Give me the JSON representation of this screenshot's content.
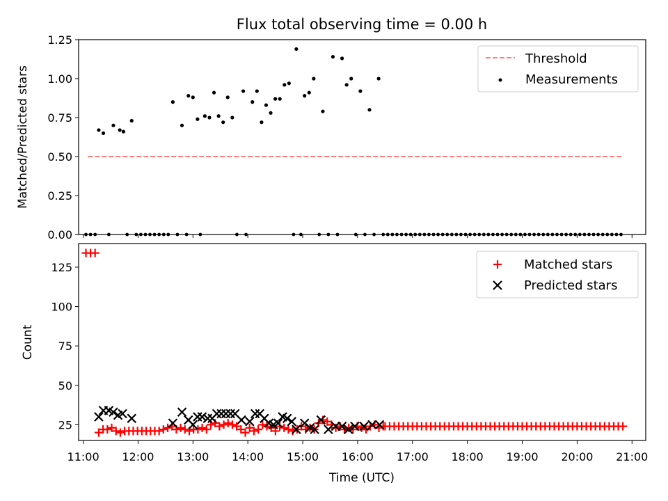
{
  "chart_data": [
    {
      "type": "scatter",
      "title": "Flux total observing time = 0.00 h",
      "xlabel": "",
      "ylabel": "Matched/Predicted stars",
      "xlim": [
        "10:55",
        "21:15"
      ],
      "ylim": [
        0,
        1.25
      ],
      "yticks": [
        0,
        0.25,
        0.5,
        0.75,
        1.0,
        1.25
      ],
      "ytick_labels": [
        "0.00",
        "0.25",
        "0.50",
        "0.75",
        "1.00",
        "1.25"
      ],
      "legend_position": "top-right",
      "series": [
        {
          "name": "Threshold",
          "kind": "line-dashed",
          "color": "#ff7f7f",
          "x": [
            "11:05",
            "20:50"
          ],
          "y": [
            0.5,
            0.5
          ]
        },
        {
          "name": "Measurements",
          "kind": "scatter-dot",
          "color": "#000000",
          "points": [
            [
              "11:17",
              0.67
            ],
            [
              "11:22",
              0.65
            ],
            [
              "11:33",
              0.7
            ],
            [
              "11:40",
              0.67
            ],
            [
              "11:44",
              0.66
            ],
            [
              "11:53",
              0.73
            ],
            [
              "12:38",
              0.85
            ],
            [
              "12:48",
              0.7
            ],
            [
              "12:55",
              0.89
            ],
            [
              "13:00",
              0.88
            ],
            [
              "13:05",
              0.74
            ],
            [
              "13:13",
              0.76
            ],
            [
              "13:18",
              0.75
            ],
            [
              "13:23",
              0.91
            ],
            [
              "13:28",
              0.76
            ],
            [
              "13:33",
              0.72
            ],
            [
              "13:38",
              0.88
            ],
            [
              "13:43",
              0.75
            ],
            [
              "13:55",
              0.92
            ],
            [
              "14:05",
              0.85
            ],
            [
              "14:10",
              0.92
            ],
            [
              "14:15",
              0.72
            ],
            [
              "14:20",
              0.83
            ],
            [
              "14:25",
              0.78
            ],
            [
              "14:30",
              0.87
            ],
            [
              "14:35",
              0.87
            ],
            [
              "14:40",
              0.96
            ],
            [
              "14:45",
              0.97
            ],
            [
              "14:53",
              1.19
            ],
            [
              "15:02",
              0.89
            ],
            [
              "15:07",
              0.91
            ],
            [
              "15:12",
              1.0
            ],
            [
              "15:22",
              0.79
            ],
            [
              "15:33",
              1.14
            ],
            [
              "15:43",
              1.13
            ],
            [
              "15:48",
              0.96
            ],
            [
              "15:53",
              1.0
            ],
            [
              "16:03",
              0.92
            ],
            [
              "16:13",
              0.8
            ],
            [
              "16:23",
              1.0
            ]
          ],
          "zero_x": [
            "11:03",
            "11:08",
            "11:13",
            "11:28",
            "11:48",
            "11:58",
            "12:03",
            "12:08",
            "12:13",
            "12:18",
            "12:23",
            "12:28",
            "12:33",
            "12:43",
            "12:53",
            "13:08",
            "13:48",
            "13:58",
            "14:50",
            "14:58",
            "15:18",
            "15:28",
            "15:38",
            "15:58",
            "16:08",
            "16:18",
            "16:28",
            "16:33",
            "16:38",
            "16:43",
            "16:48",
            "16:53",
            "16:58",
            "17:03",
            "17:08",
            "17:13",
            "17:18",
            "17:23",
            "17:28",
            "17:33",
            "17:38",
            "17:43",
            "17:48",
            "17:53",
            "17:58",
            "18:03",
            "18:08",
            "18:13",
            "18:18",
            "18:23",
            "18:28",
            "18:33",
            "18:38",
            "18:43",
            "18:48",
            "18:53",
            "18:58",
            "19:03",
            "19:08",
            "19:13",
            "19:18",
            "19:23",
            "19:28",
            "19:33",
            "19:38",
            "19:43",
            "19:48",
            "19:53",
            "19:58",
            "20:03",
            "20:08",
            "20:13",
            "20:18",
            "20:23",
            "20:28",
            "20:33",
            "20:38",
            "20:43",
            "20:48"
          ]
        }
      ]
    },
    {
      "type": "scatter",
      "title": "",
      "xlabel": "Time (UTC)",
      "ylabel": "Count",
      "xlim": [
        "10:55",
        "21:15"
      ],
      "ylim": [
        15,
        140
      ],
      "yticks": [
        25,
        50,
        75,
        100,
        125
      ],
      "ytick_labels": [
        "25",
        "50",
        "75",
        "100",
        "125"
      ],
      "xticks": [
        "11:00",
        "12:00",
        "13:00",
        "14:00",
        "15:00",
        "16:00",
        "17:00",
        "18:00",
        "19:00",
        "20:00",
        "21:00"
      ],
      "legend_position": "top-right",
      "series": [
        {
          "name": "Matched stars",
          "kind": "scatter-plus",
          "color": "#ff0000",
          "early": [
            [
              "11:03",
              134
            ],
            [
              "11:08",
              134
            ],
            [
              "11:13",
              134
            ]
          ],
          "sparse_start": "11:17",
          "sparse_end": "16:28",
          "sparse_values": [
            20,
            22,
            22,
            23,
            21,
            20,
            21,
            21,
            21,
            21,
            21,
            21,
            21,
            21,
            21,
            22,
            23,
            24,
            22,
            23,
            22,
            21,
            22,
            22,
            23,
            22,
            25,
            26,
            24,
            25,
            26,
            25,
            24,
            22,
            20,
            23,
            21,
            22,
            25,
            24,
            23,
            21,
            24,
            23,
            22,
            21,
            22,
            24,
            22,
            23,
            22,
            26,
            28,
            27,
            25,
            23,
            24,
            22,
            23,
            22,
            24,
            23,
            22,
            24,
            25,
            23,
            24
          ],
          "tail_start": "16:30",
          "tail_end": "20:50",
          "tail_value": 24
        },
        {
          "name": "Predicted stars",
          "kind": "scatter-x",
          "color": "#000000",
          "points": [
            [
              "11:17",
              30
            ],
            [
              "11:22",
              34
            ],
            [
              "11:28",
              34
            ],
            [
              "11:33",
              33
            ],
            [
              "11:38",
              31
            ],
            [
              "11:43",
              32
            ],
            [
              "11:53",
              29
            ],
            [
              "12:38",
              26
            ],
            [
              "12:48",
              33
            ],
            [
              "12:55",
              28
            ],
            [
              "13:00",
              25
            ],
            [
              "13:05",
              30
            ],
            [
              "13:10",
              30
            ],
            [
              "13:16",
              29
            ],
            [
              "13:21",
              29
            ],
            [
              "13:26",
              32
            ],
            [
              "13:31",
              32
            ],
            [
              "13:36",
              32
            ],
            [
              "13:41",
              32
            ],
            [
              "13:46",
              32
            ],
            [
              "13:53",
              28
            ],
            [
              "14:02",
              27
            ],
            [
              "14:08",
              32
            ],
            [
              "14:13",
              32
            ],
            [
              "14:18",
              29
            ],
            [
              "14:23",
              26
            ],
            [
              "14:28",
              25
            ],
            [
              "14:33",
              26
            ],
            [
              "14:38",
              30
            ],
            [
              "14:43",
              29
            ],
            [
              "14:48",
              27
            ],
            [
              "14:53",
              22
            ],
            [
              "15:02",
              26
            ],
            [
              "15:08",
              23
            ],
            [
              "15:13",
              22
            ],
            [
              "15:20",
              28
            ],
            [
              "15:28",
              22
            ],
            [
              "15:36",
              24
            ],
            [
              "15:43",
              24
            ],
            [
              "15:50",
              22
            ],
            [
              "15:57",
              24
            ],
            [
              "16:07",
              24
            ],
            [
              "16:16",
              25
            ],
            [
              "16:24",
              25
            ]
          ]
        }
      ]
    }
  ]
}
